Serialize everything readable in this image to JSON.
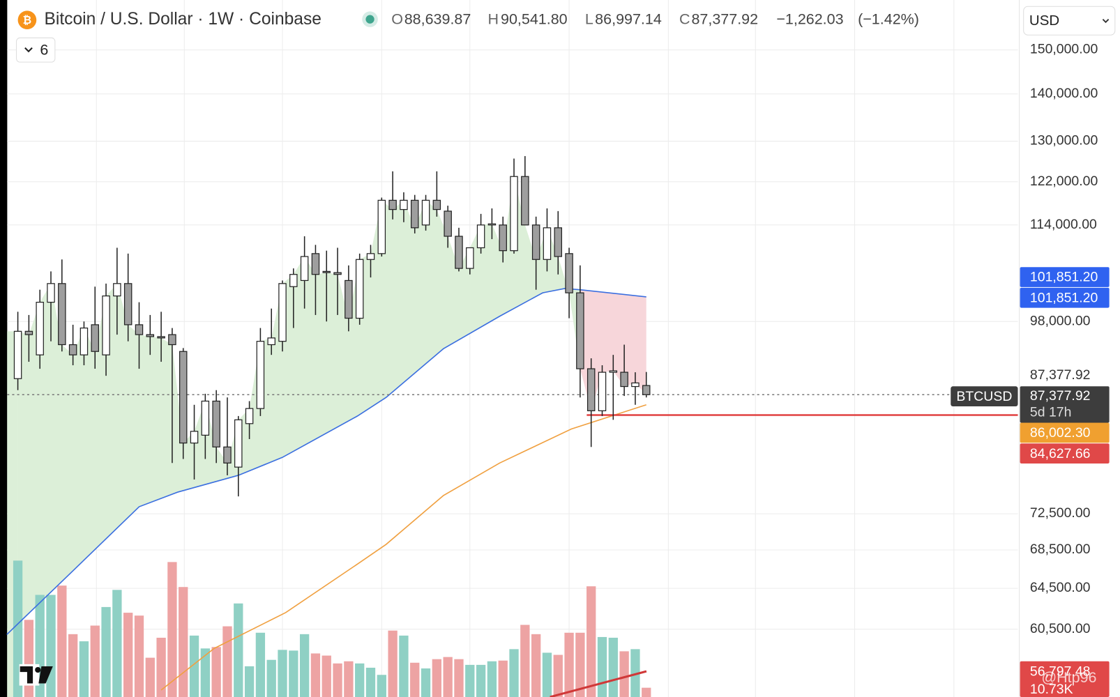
{
  "chart_data": {
    "type": "candlestick",
    "header": {
      "title": "Bitcoin / U.S. Dollar · 1W · Coinbase",
      "quote": [
        {
          "key": "O",
          "value": 88639.87,
          "label": "88,639.87"
        },
        {
          "key": "H",
          "value": 90541.8,
          "label": "90,541.80"
        },
        {
          "key": "L",
          "value": 86997.14,
          "label": "86,997.14"
        },
        {
          "key": "C",
          "value": 87377.92,
          "label": "87,377.92"
        }
      ],
      "change": {
        "value": -1262.03,
        "label": "−1,262.03"
      },
      "change_pct": {
        "value": -1.42,
        "label": "(−1.42%)"
      },
      "currency": "USD",
      "indicators": "6"
    },
    "log_scale": true,
    "ylim": [
      54400,
      162200
    ],
    "xlim": [
      -0.97,
      90.7
    ],
    "vlim": [
      0,
      260
    ],
    "xgrid": [
      7.13,
      15.1,
      24.0,
      33.0,
      41.0,
      50.0,
      59.0,
      66.9,
      75.9,
      84.9
    ],
    "yticks": [
      {
        "value": 150000,
        "label": "150,000.00"
      },
      {
        "value": 140000,
        "label": "140,000.00"
      },
      {
        "value": 130000,
        "label": "130,000.00"
      },
      {
        "value": 122000,
        "label": "122,000.00"
      },
      {
        "value": 114000,
        "label": "114,000.00"
      },
      {
        "value": 98000,
        "label": "98,000.00"
      },
      {
        "value": 72500,
        "label": "72,500.00"
      },
      {
        "value": 68500,
        "label": "68,500.00"
      },
      {
        "value": 64500,
        "label": "64,500.00"
      },
      {
        "value": 60500,
        "label": "60,500.00"
      }
    ],
    "up_color": "#ffffff",
    "down_color": "#9e9e9e",
    "vol_up_color": "#8fd0c4",
    "vol_down_color": "#eda3a3",
    "candles": {
      "open": [
        89600,
        96500,
        93000,
        101000,
        104000,
        94500,
        93000,
        97500,
        93000,
        102000,
        104000,
        97500,
        96000,
        95700,
        96000,
        93500,
        81000,
        82000,
        86500,
        80500,
        78000,
        83500,
        85500,
        94500,
        95000,
        103500,
        104500,
        109000,
        106000,
        105800,
        104500,
        98500,
        108000,
        109000,
        118500,
        116800,
        118500,
        114000,
        118500,
        116500,
        112000,
        106500,
        110000,
        114000,
        114000,
        109500,
        123000,
        114000,
        108000,
        113500,
        109000,
        102500,
        91000,
        85200,
        90500,
        90500,
        88500,
        88640
      ],
      "high": [
        99500,
        99000,
        103000,
        106000,
        108000,
        97500,
        98000,
        103500,
        104000,
        110000,
        109000,
        101000,
        99000,
        99500,
        97000,
        94000,
        86000,
        87500,
        88000,
        87000,
        84500,
        86500,
        97000,
        100000,
        104500,
        106500,
        112000,
        110500,
        109500,
        110000,
        107000,
        109000,
        110500,
        119000,
        124000,
        120000,
        119500,
        119500,
        124000,
        117500,
        113500,
        109500,
        116000,
        117000,
        115500,
        126500,
        127000,
        115500,
        117000,
        116500,
        110000,
        107000,
        92500,
        91500,
        93000,
        94500,
        90500,
        90542
      ],
      "low": [
        88000,
        92000,
        91000,
        95000,
        93500,
        91500,
        91500,
        91000,
        90000,
        96000,
        95000,
        91000,
        93000,
        92000,
        78500,
        79000,
        76500,
        79000,
        78500,
        77000,
        74500,
        81500,
        84500,
        93000,
        93500,
        97000,
        100000,
        99000,
        98000,
        99000,
        96500,
        97500,
        105000,
        108500,
        115000,
        114500,
        112500,
        113000,
        115500,
        110000,
        106000,
        105500,
        109000,
        111500,
        107500,
        109000,
        114000,
        103000,
        106000,
        105500,
        98500,
        87000,
        80500,
        84500,
        84000,
        87200,
        86000,
        86997
      ],
      "close": [
        96500,
        96000,
        101000,
        104000,
        94500,
        93000,
        97000,
        93500,
        102000,
        104000,
        97500,
        96000,
        95700,
        95500,
        94500,
        81000,
        82500,
        86500,
        80500,
        78500,
        84000,
        85500,
        95000,
        95500,
        104000,
        105500,
        108500,
        105500,
        105800,
        105500,
        98500,
        108000,
        109000,
        118500,
        116800,
        118500,
        113500,
        118500,
        116800,
        112000,
        106500,
        110000,
        114000,
        114200,
        109500,
        123000,
        114000,
        108000,
        113500,
        108500,
        102500,
        91000,
        85200,
        90500,
        90700,
        88500,
        89000,
        87378
      ]
    },
    "volume": [
      191,
      108,
      143,
      143,
      156,
      88,
      78,
      100,
      126,
      150,
      118,
      114,
      55,
      83,
      189,
      154,
      86,
      68,
      70,
      99,
      131,
      43,
      90,
      52,
      66,
      65,
      88,
      61,
      58,
      47,
      50,
      47,
      41,
      31,
      93,
      86,
      48,
      40,
      53,
      56,
      53,
      45,
      45,
      50,
      51,
      67,
      101,
      88,
      62,
      59,
      90,
      90,
      155,
      84,
      83,
      64,
      67,
      13
    ],
    "moving_averages": [
      {
        "color": "#3b6fe0",
        "x": [
          -1,
          5,
          11,
          14.5,
          20,
          24,
          30.8,
          33.4,
          38.6,
          43.7,
          47.6,
          49.6,
          51,
          57
        ],
        "values": [
          60000,
          66300,
          73300,
          75000,
          77000,
          79200,
          84500,
          87000,
          93900,
          98800,
          102500,
          103200,
          103000,
          101851.2
        ]
      },
      {
        "color": "#f0a040",
        "x": [
          13,
          17.8,
          24.3,
          30.8,
          33.4,
          38.6,
          43.7,
          50.2,
          57
        ],
        "values": [
          55000,
          58700,
          62100,
          67000,
          69100,
          74600,
          78500,
          82800,
          86002.3
        ]
      }
    ],
    "support_line": {
      "value": 84627.66,
      "label": "84,627.66",
      "from": 51.6,
      "color": "#e04040"
    },
    "price_labels": [
      {
        "value": 101851.2,
        "label": "101,851.20",
        "color": "#2f62f0"
      },
      {
        "value": 101851.2,
        "label": "101,851.20",
        "color": "#2f62f0"
      },
      {
        "value": 86002.3,
        "label": "86,002.30",
        "color": "#f0a030"
      },
      {
        "value": 84627.66,
        "label": "84,627.66",
        "color": "#e04848"
      }
    ],
    "last_price": {
      "value": 87377.92,
      "label": "87,377.92",
      "symbol": "BTCUSD",
      "countdown": "5d 17h"
    },
    "volume_label": {
      "value": 56797.48,
      "label": "56,797.48",
      "sub": "10.73K"
    },
    "watermark": "@Htp96"
  }
}
